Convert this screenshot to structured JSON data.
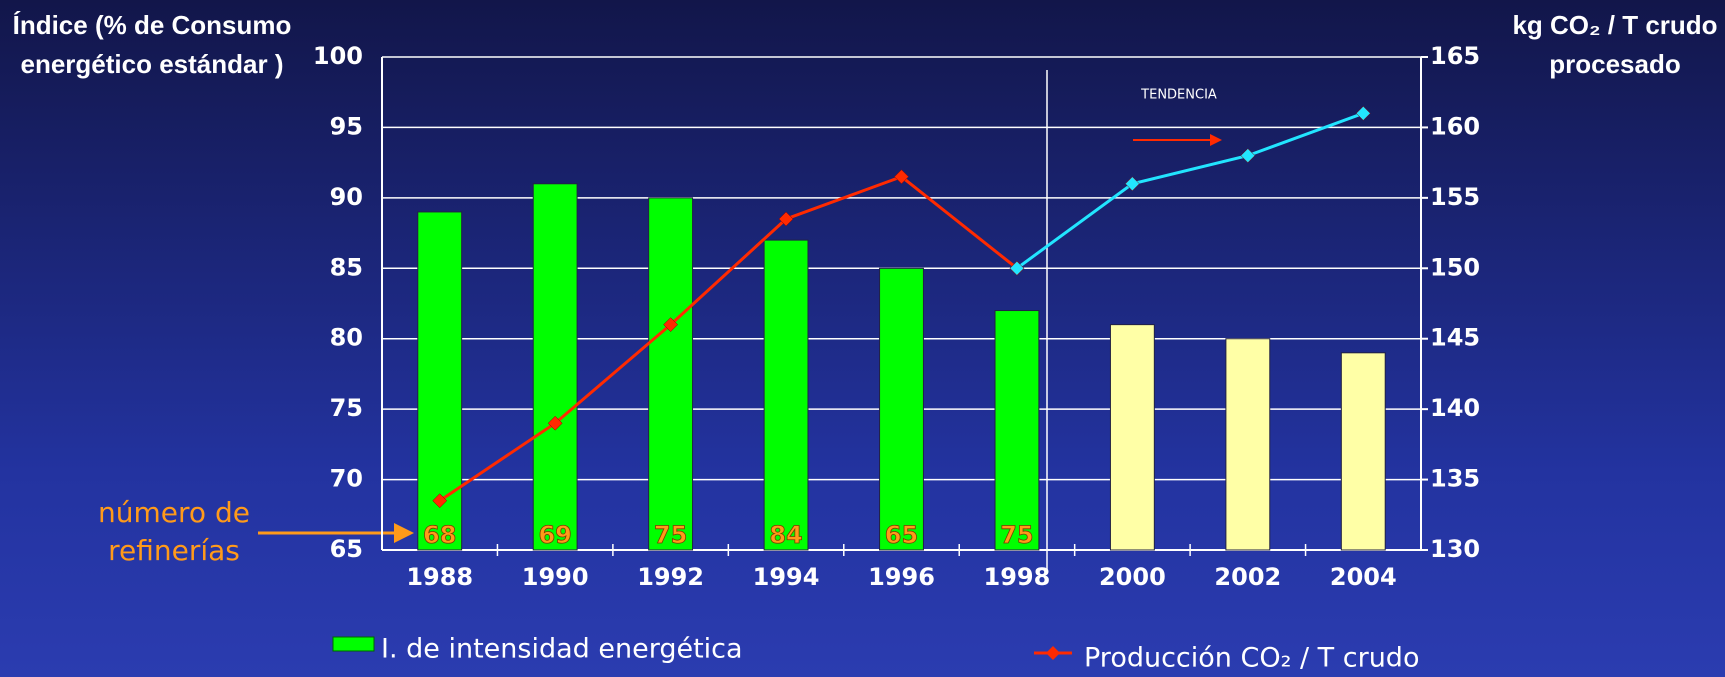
{
  "chart_data": {
    "type": "bar",
    "y_label": [
      "Índice (% de Consumo",
      "energético estándar )"
    ],
    "y2_label": [
      "kg CO₂ / T crudo",
      "procesado"
    ],
    "categories": [
      "1988",
      "1990",
      "1992",
      "1994",
      "1996",
      "1998",
      "2000",
      "2002",
      "2004"
    ],
    "series": [
      {
        "name": "I. de intensidad energética",
        "type": "bar",
        "colors": [
          "#00ff00",
          "#00ff00",
          "#00ff00",
          "#00ff00",
          "#00ff00",
          "#00ff00",
          "#ffffa6",
          "#ffffa6",
          "#ffffa6"
        ],
        "values": [
          89,
          91,
          90,
          87,
          85,
          82,
          81,
          80,
          79
        ]
      },
      {
        "name": "Producción CO₂ / T crudo",
        "type": "line",
        "axis": "y2",
        "color": "#ff2a00",
        "values": [
          133.5,
          139,
          146,
          153.5,
          156.5,
          150,
          null,
          null,
          null
        ]
      },
      {
        "type": "line",
        "axis": "y2",
        "color": "#22e5ff",
        "values": [
          null,
          null,
          null,
          null,
          null,
          150,
          156,
          158,
          161
        ]
      }
    ],
    "ylim": [
      65,
      100
    ],
    "yticks": [
      65,
      70,
      75,
      80,
      85,
      90,
      95,
      100
    ],
    "y2lim": [
      130,
      165
    ],
    "y2ticks": [
      130,
      135,
      140,
      145,
      150,
      155,
      160,
      165
    ],
    "grid": true,
    "annotations": {
      "trend": "TENDENCIA",
      "refineries_label": [
        "número de",
        "refinerías"
      ],
      "refinery_counts": [
        "68",
        "69",
        "75",
        "84",
        "65",
        "75"
      ]
    }
  }
}
